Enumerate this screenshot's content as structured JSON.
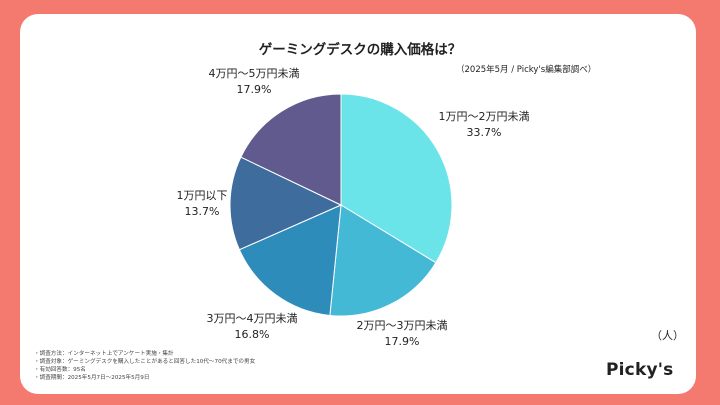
{
  "title": "ゲーミングデスクの購入価格は？",
  "source": "（2025年5月 / Picky's編集部調べ）",
  "unit": "（人）",
  "logo": "Picky's",
  "notes": [
    "・調査方法：インターネット上でアンケート実施・集計",
    "・調査対象：ゲーミングデスクを購入したことがあると回答した10代〜70代までの男女",
    "・有効回答数：95名",
    "・調査期間：2025年5月7日〜2025年5月9日"
  ],
  "chart_data": {
    "type": "pie",
    "title": "ゲーミングデスクの購入価格は？",
    "slices": [
      {
        "label": "1万円〜2万円未満",
        "value": 33.7,
        "pct_label": "33.7%",
        "color": "#6ae4e8"
      },
      {
        "label": "2万円〜3万円未満",
        "value": 17.9,
        "pct_label": "17.9%",
        "color": "#44b9d6"
      },
      {
        "label": "3万円〜4万円未満",
        "value": 16.8,
        "pct_label": "16.8%",
        "color": "#2d8cba"
      },
      {
        "label": "1万円以下",
        "value": 13.7,
        "pct_label": "13.7%",
        "color": "#3e6c9c"
      },
      {
        "label": "4万円〜5万円未満",
        "value": 17.9,
        "pct_label": "17.9%",
        "color": "#615a8e"
      }
    ]
  }
}
